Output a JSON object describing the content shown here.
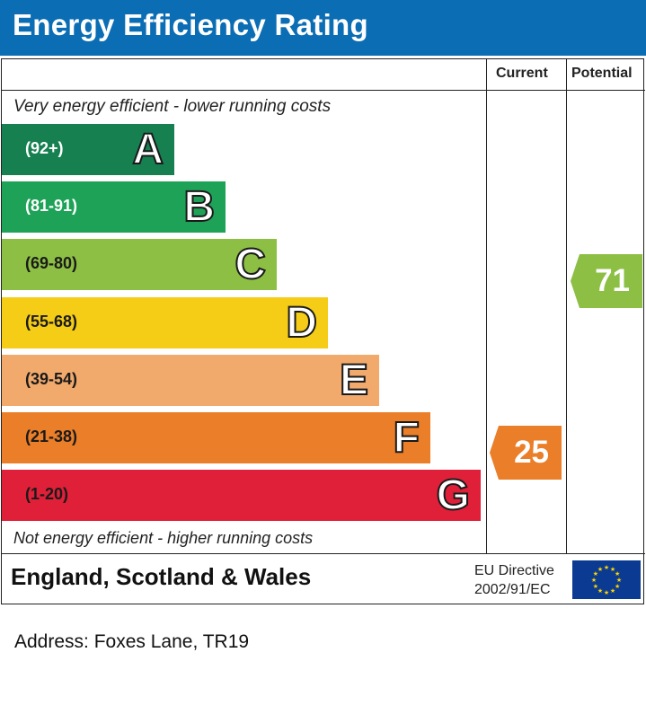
{
  "header": {
    "title": "Energy Efficiency Rating"
  },
  "columns": {
    "current": "Current",
    "potential": "Potential"
  },
  "notes": {
    "top": "Very energy efficient - lower running costs",
    "bottom": "Not energy efficient - higher running costs"
  },
  "bands": [
    {
      "range": "(92+)",
      "letter": "A",
      "color": "#168050"
    },
    {
      "range": "(81-91)",
      "letter": "B",
      "color": "#1ea257"
    },
    {
      "range": "(69-80)",
      "letter": "C",
      "color": "#8cbf44"
    },
    {
      "range": "(55-68)",
      "letter": "D",
      "color": "#f5cd16"
    },
    {
      "range": "(39-54)",
      "letter": "E",
      "color": "#f1a96c"
    },
    {
      "range": "(21-38)",
      "letter": "F",
      "color": "#eb7e28"
    },
    {
      "range": "(1-20)",
      "letter": "G",
      "color": "#df2038"
    }
  ],
  "ratings": {
    "current": {
      "value": "25",
      "color": "#eb7e28"
    },
    "potential": {
      "value": "71",
      "color": "#8cbf44"
    }
  },
  "footer": {
    "region": "England, Scotland & Wales",
    "directive_line1": "EU Directive",
    "directive_line2": "2002/91/EC",
    "flag_icon": "eu-flag-icon"
  },
  "address": "Address: Foxes Lane, TR19"
}
